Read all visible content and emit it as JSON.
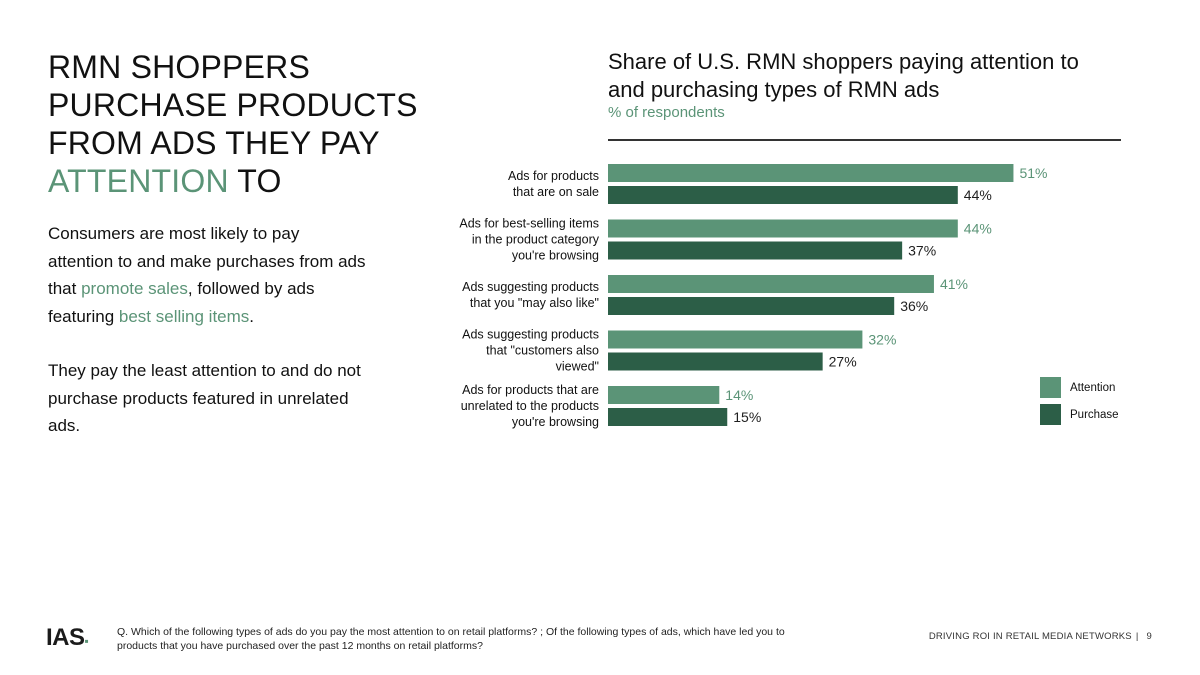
{
  "headline": {
    "line1": "RMN SHOPPERS",
    "line2": "PURCHASE PRODUCTS",
    "line3": "FROM ADS THEY PAY",
    "accent": "ATTENTION",
    "tail": " TO"
  },
  "body": {
    "p1_a": "Consumers are most likely to pay attention to and make purchases from ads that ",
    "p1_hl1": "promote sales",
    "p1_b": ", followed by ads featuring ",
    "p1_hl2": "best selling items",
    "p1_c": ".",
    "p2": "They pay the least attention to and do not purchase products featured in unrelated ads."
  },
  "colors": {
    "accent": "#5b9477",
    "attention": "#5b9477",
    "purchase": "#2c5e47"
  },
  "chart_data": {
    "type": "bar",
    "orientation": "horizontal",
    "title": "Share of U.S. RMN shoppers paying attention to and purchasing types of RMN ads",
    "subtitle": "% of respondents",
    "categories": [
      [
        "Ads for products",
        "that are on sale"
      ],
      [
        "Ads for best-selling items",
        "in the product category",
        "you're browsing"
      ],
      [
        "Ads suggesting products",
        "that you \"may also like\""
      ],
      [
        "Ads suggesting products",
        "that \"customers also",
        "viewed\""
      ],
      [
        "Ads for products that are",
        "unrelated to the products",
        "you're browsing"
      ]
    ],
    "series": [
      {
        "name": "Attention",
        "values": [
          51,
          44,
          41,
          32,
          14
        ],
        "labels": [
          "51%",
          "44%",
          "41%",
          "32%",
          "14%"
        ]
      },
      {
        "name": "Purchase",
        "values": [
          44,
          37,
          36,
          27,
          15
        ],
        "labels": [
          "44%",
          "37%",
          "36%",
          "27%",
          "15%"
        ]
      }
    ],
    "xlim": [
      0,
      60
    ],
    "legend_position": "bottom-right",
    "grid": false
  },
  "footer": {
    "logo": "IAS",
    "note": "Q. Which of the following types of ads do you pay the most attention to on retail platforms? ; Of the following types of ads, which have led you to products that you have purchased over the past 12 months on retail platforms?",
    "report": "DRIVING ROI IN RETAIL MEDIA NETWORKS",
    "separator": "|",
    "page": "9"
  }
}
